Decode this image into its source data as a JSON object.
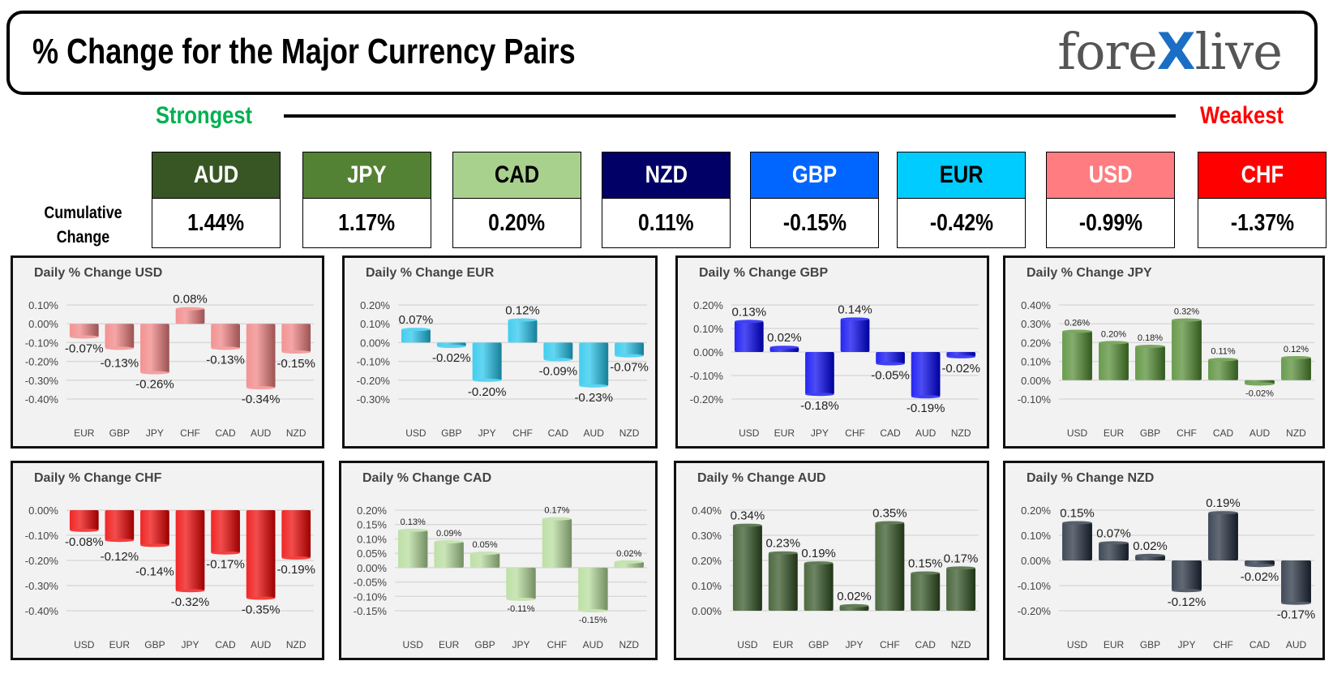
{
  "header": {
    "title": "% Change for the Major Currency Pairs",
    "logo": "forexlive"
  },
  "scale": {
    "strongest": "Strongest",
    "weakest": "Weakest"
  },
  "cumulative_label": [
    "Cumulative",
    "Change"
  ],
  "currencies": [
    {
      "code": "AUD",
      "value": "1.44%",
      "color": "#375623",
      "text": "#ffffff"
    },
    {
      "code": "JPY",
      "value": "1.17%",
      "color": "#548235",
      "text": "#ffffff"
    },
    {
      "code": "CAD",
      "value": "0.20%",
      "color": "#a9d18e",
      "text": "#000000"
    },
    {
      "code": "NZD",
      "value": "0.11%",
      "color": "#000066",
      "text": "#ffffff"
    },
    {
      "code": "GBP",
      "value": "-0.15%",
      "color": "#0066ff",
      "text": "#ffffff"
    },
    {
      "code": "EUR",
      "value": "-0.42%",
      "color": "#00ccff",
      "text": "#000000"
    },
    {
      "code": "USD",
      "value": "-0.99%",
      "color": "#ff7c80",
      "text": "#ffffff"
    },
    {
      "code": "CHF",
      "value": "-1.37%",
      "color": "#ff0000",
      "text": "#ffffff"
    }
  ],
  "chart_data": [
    {
      "type": "bar",
      "title": "Daily % Change USD",
      "categories": [
        "EUR",
        "GBP",
        "JPY",
        "CHF",
        "CAD",
        "AUD",
        "NZD"
      ],
      "values": [
        -0.07,
        -0.13,
        -0.26,
        0.08,
        -0.13,
        -0.34,
        -0.15
      ],
      "ylim": [
        -0.4,
        0.1
      ],
      "ystep": 0.1,
      "color": "#f08080",
      "grid": true
    },
    {
      "type": "bar",
      "title": "Daily % Change EUR",
      "categories": [
        "USD",
        "GBP",
        "JPY",
        "CHF",
        "CAD",
        "AUD",
        "NZD"
      ],
      "values": [
        0.07,
        -0.02,
        -0.2,
        0.12,
        -0.09,
        -0.23,
        -0.07
      ],
      "ylim": [
        -0.3,
        0.2
      ],
      "ystep": 0.1,
      "color": "#22c4ec",
      "grid": true
    },
    {
      "type": "bar",
      "title": "Daily % Change GBP",
      "categories": [
        "USD",
        "EUR",
        "JPY",
        "CHF",
        "CAD",
        "AUD",
        "NZD"
      ],
      "values": [
        0.13,
        0.02,
        -0.18,
        0.14,
        -0.05,
        -0.19,
        -0.02
      ],
      "ylim": [
        -0.2,
        0.2
      ],
      "ystep": 0.1,
      "color": "#0000f0",
      "grid": true
    },
    {
      "type": "bar",
      "title": "Daily % Change JPY",
      "categories": [
        "USD",
        "EUR",
        "GBP",
        "CHF",
        "CAD",
        "AUD",
        "NZD"
      ],
      "values": [
        0.26,
        0.2,
        0.18,
        0.32,
        0.11,
        -0.02,
        0.12
      ],
      "ylim": [
        -0.1,
        0.4
      ],
      "ystep": 0.1,
      "color": "#4f8a2e",
      "grid": true
    },
    {
      "type": "bar",
      "title": "Daily % Change CHF",
      "categories": [
        "USD",
        "EUR",
        "GBP",
        "JPY",
        "CAD",
        "AUD",
        "NZD"
      ],
      "values": [
        -0.08,
        -0.12,
        -0.14,
        -0.32,
        -0.17,
        -0.35,
        -0.19
      ],
      "ylim": [
        -0.4,
        0.0
      ],
      "ystep": 0.1,
      "color": "#ee0000",
      "grid": true
    },
    {
      "type": "bar",
      "title": "Daily % Change CAD",
      "categories": [
        "USD",
        "EUR",
        "GBP",
        "JPY",
        "CHF",
        "AUD",
        "NZD"
      ],
      "values": [
        0.13,
        0.09,
        0.05,
        -0.11,
        0.17,
        -0.15,
        0.02
      ],
      "ylim": [
        -0.15,
        0.2
      ],
      "ystep": 0.05,
      "color": "#b3da98",
      "grid": true
    },
    {
      "type": "bar",
      "title": "Daily % Change AUD",
      "categories": [
        "USD",
        "EUR",
        "GBP",
        "JPY",
        "CHF",
        "CAD",
        "NZD"
      ],
      "values": [
        0.34,
        0.23,
        0.19,
        0.02,
        0.35,
        0.15,
        0.17
      ],
      "ylim": [
        0.0,
        0.4
      ],
      "ystep": 0.1,
      "color": "#2f5020",
      "grid": true
    },
    {
      "type": "bar",
      "title": "Daily % Change NZD",
      "categories": [
        "USD",
        "EUR",
        "GBP",
        "JPY",
        "CHF",
        "CAD",
        "AUD"
      ],
      "values": [
        0.15,
        0.07,
        0.02,
        -0.12,
        0.19,
        -0.02,
        -0.17
      ],
      "ylim": [
        -0.2,
        0.2
      ],
      "ystep": 0.1,
      "color": "#1e2a3a",
      "grid": true
    }
  ]
}
